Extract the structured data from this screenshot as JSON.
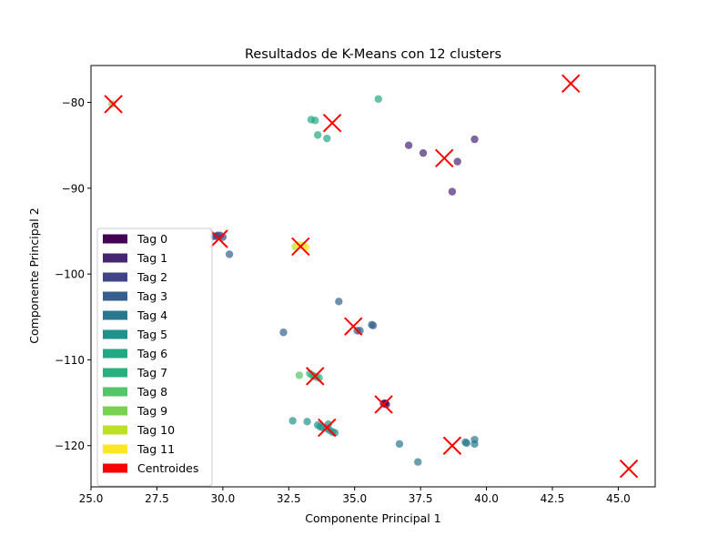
{
  "chart_data": {
    "type": "scatter",
    "title": "Resultados de K-Means con 12 clusters",
    "xlabel": "Componente Principal 1",
    "ylabel": "Componente Principal 2",
    "xlim": [
      25.0,
      46.4
    ],
    "ylim": [
      -124.8,
      -75.7
    ],
    "xticks": [
      25.0,
      27.5,
      30.0,
      32.5,
      35.0,
      37.5,
      40.0,
      42.5,
      45.0
    ],
    "xtick_labels": [
      "25.0",
      "27.5",
      "30.0",
      "32.5",
      "35.0",
      "37.5",
      "40.0",
      "42.5",
      "45.0"
    ],
    "yticks": [
      -80,
      -90,
      -100,
      -110,
      -120
    ],
    "ytick_labels": [
      "−80",
      "−90",
      "−100",
      "−110",
      "−120"
    ],
    "grid": false,
    "legend_position": "lower-left",
    "point_alpha": 0.7,
    "series": [
      {
        "name": "Tag 0",
        "color": "#440154",
        "points": [
          [
            36.1,
            -115.1
          ],
          [
            36.15,
            -115.05
          ],
          [
            36.2,
            -115.2
          ]
        ]
      },
      {
        "name": "Tag 1",
        "color": "#482475",
        "points": [
          [
            37.05,
            -85.0
          ],
          [
            37.6,
            -85.9
          ],
          [
            38.9,
            -86.9
          ],
          [
            39.55,
            -84.3
          ],
          [
            38.7,
            -90.4
          ]
        ]
      },
      {
        "name": "Tag 2",
        "color": "#414487",
        "points": [
          [
            29.65,
            -95.6
          ],
          [
            29.8,
            -95.5
          ],
          [
            29.9,
            -95.5
          ],
          [
            30.0,
            -95.7
          ],
          [
            29.75,
            -95.6
          ]
        ]
      },
      {
        "name": "Tag 3",
        "color": "#355f8d",
        "points": [
          [
            30.25,
            -97.7
          ],
          [
            32.3,
            -106.8
          ],
          [
            34.4,
            -103.2
          ],
          [
            35.1,
            -106.6
          ],
          [
            35.2,
            -106.6
          ],
          [
            35.65,
            -105.9
          ],
          [
            35.7,
            -106.0
          ]
        ]
      },
      {
        "name": "Tag 4",
        "color": "#2a788e",
        "points": [
          [
            36.7,
            -119.8
          ],
          [
            37.4,
            -121.9
          ],
          [
            39.2,
            -119.6
          ],
          [
            39.25,
            -119.7
          ],
          [
            39.55,
            -119.8
          ],
          [
            39.55,
            -119.3
          ]
        ]
      },
      {
        "name": "Tag 5",
        "color": "#21918c",
        "points": [
          [
            32.65,
            -117.1
          ],
          [
            33.2,
            -117.2
          ],
          [
            33.7,
            -117.8
          ],
          [
            33.8,
            -117.9
          ],
          [
            33.95,
            -118.0
          ],
          [
            34.05,
            -118.2
          ],
          [
            34.15,
            -118.4
          ],
          [
            34.25,
            -118.5
          ],
          [
            33.6,
            -117.6
          ],
          [
            34.0,
            -117.5
          ]
        ]
      },
      {
        "name": "Tag 6",
        "color": "#22a884",
        "points": [
          [
            35.9,
            -79.6
          ],
          [
            33.35,
            -82.0
          ],
          [
            33.5,
            -82.1
          ],
          [
            33.6,
            -83.8
          ],
          [
            33.95,
            -84.2
          ]
        ]
      },
      {
        "name": "Tag 7",
        "color": "#2ab07f",
        "points": [
          [
            33.3,
            -111.6
          ],
          [
            33.45,
            -111.9
          ],
          [
            33.55,
            -112.0
          ],
          [
            33.65,
            -112.1
          ],
          [
            33.4,
            -111.8
          ]
        ]
      },
      {
        "name": "Tag 8",
        "color": "#54c568",
        "points": [
          [
            32.9,
            -111.8
          ]
        ]
      },
      {
        "name": "Tag 9",
        "color": "#7ad151",
        "points": [
          [
            25.8,
            -80.2
          ]
        ]
      },
      {
        "name": "Tag 10",
        "color": "#bddf26",
        "points": [
          [
            32.75,
            -96.8
          ],
          [
            33.05,
            -96.7
          ]
        ]
      },
      {
        "name": "Tag 11",
        "color": "#fde725",
        "points": [
          [
            32.9,
            -96.6
          ],
          [
            33.15,
            -96.9
          ]
        ]
      }
    ],
    "centroids": {
      "name": "Centroides",
      "color": "#ff0000",
      "marker": "x",
      "points": [
        [
          25.85,
          -80.2
        ],
        [
          43.2,
          -77.8
        ],
        [
          34.15,
          -82.4
        ],
        [
          38.4,
          -86.5
        ],
        [
          29.85,
          -95.9
        ],
        [
          32.95,
          -96.8
        ],
        [
          34.95,
          -106.1
        ],
        [
          33.5,
          -111.9
        ],
        [
          36.1,
          -115.2
        ],
        [
          33.95,
          -117.9
        ],
        [
          38.7,
          -120.0
        ],
        [
          45.4,
          -122.7
        ]
      ]
    }
  }
}
